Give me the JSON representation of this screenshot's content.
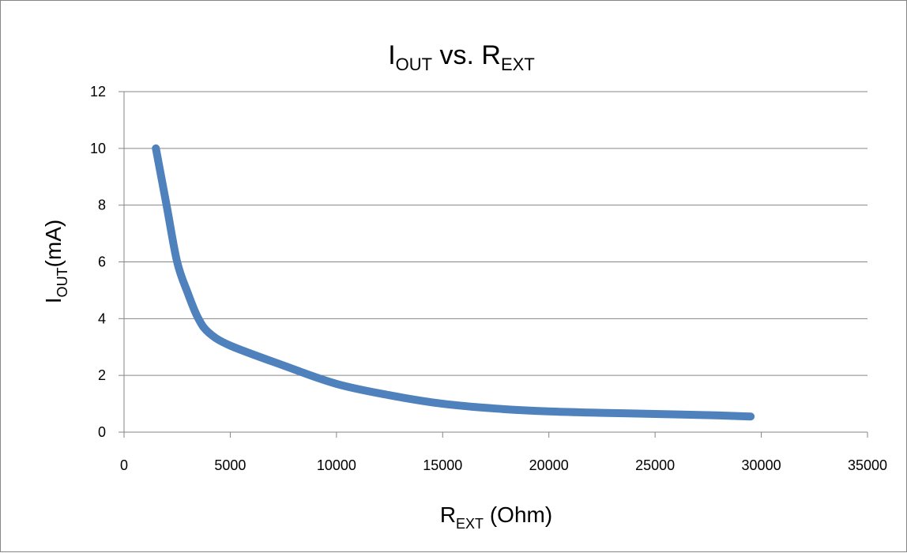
{
  "chart_data": {
    "type": "line",
    "title": {
      "main": "I",
      "sub": "OUT",
      "mid": " vs. R",
      "sub2": "EXT"
    },
    "xlabel": {
      "main": "R",
      "sub": "EXT",
      "suffix": " (Ohm)"
    },
    "ylabel": {
      "main": "I",
      "sub": "OUT",
      "suffix": "(mA)"
    },
    "xlim": [
      0,
      35000
    ],
    "ylim": [
      0,
      12
    ],
    "x_ticks": [
      "0",
      "5000",
      "10000",
      "15000",
      "20000",
      "25000",
      "30000",
      "35000"
    ],
    "y_ticks": [
      "0",
      "2",
      "4",
      "6",
      "8",
      "10",
      "12"
    ],
    "grid": "horizontal",
    "legend": "none",
    "series": [
      {
        "color": "#4f81bd",
        "points": [
          [
            1500,
            10.0
          ],
          [
            2000,
            8.0
          ],
          [
            2500,
            6.0
          ],
          [
            3000,
            4.9
          ],
          [
            3500,
            4.0
          ],
          [
            4000,
            3.5
          ],
          [
            5000,
            3.05
          ],
          [
            7500,
            2.35
          ],
          [
            10000,
            1.7
          ],
          [
            12500,
            1.3
          ],
          [
            15000,
            1.0
          ],
          [
            17500,
            0.83
          ],
          [
            20000,
            0.73
          ],
          [
            22500,
            0.68
          ],
          [
            25000,
            0.64
          ],
          [
            27500,
            0.6
          ],
          [
            29500,
            0.55
          ]
        ]
      }
    ]
  }
}
